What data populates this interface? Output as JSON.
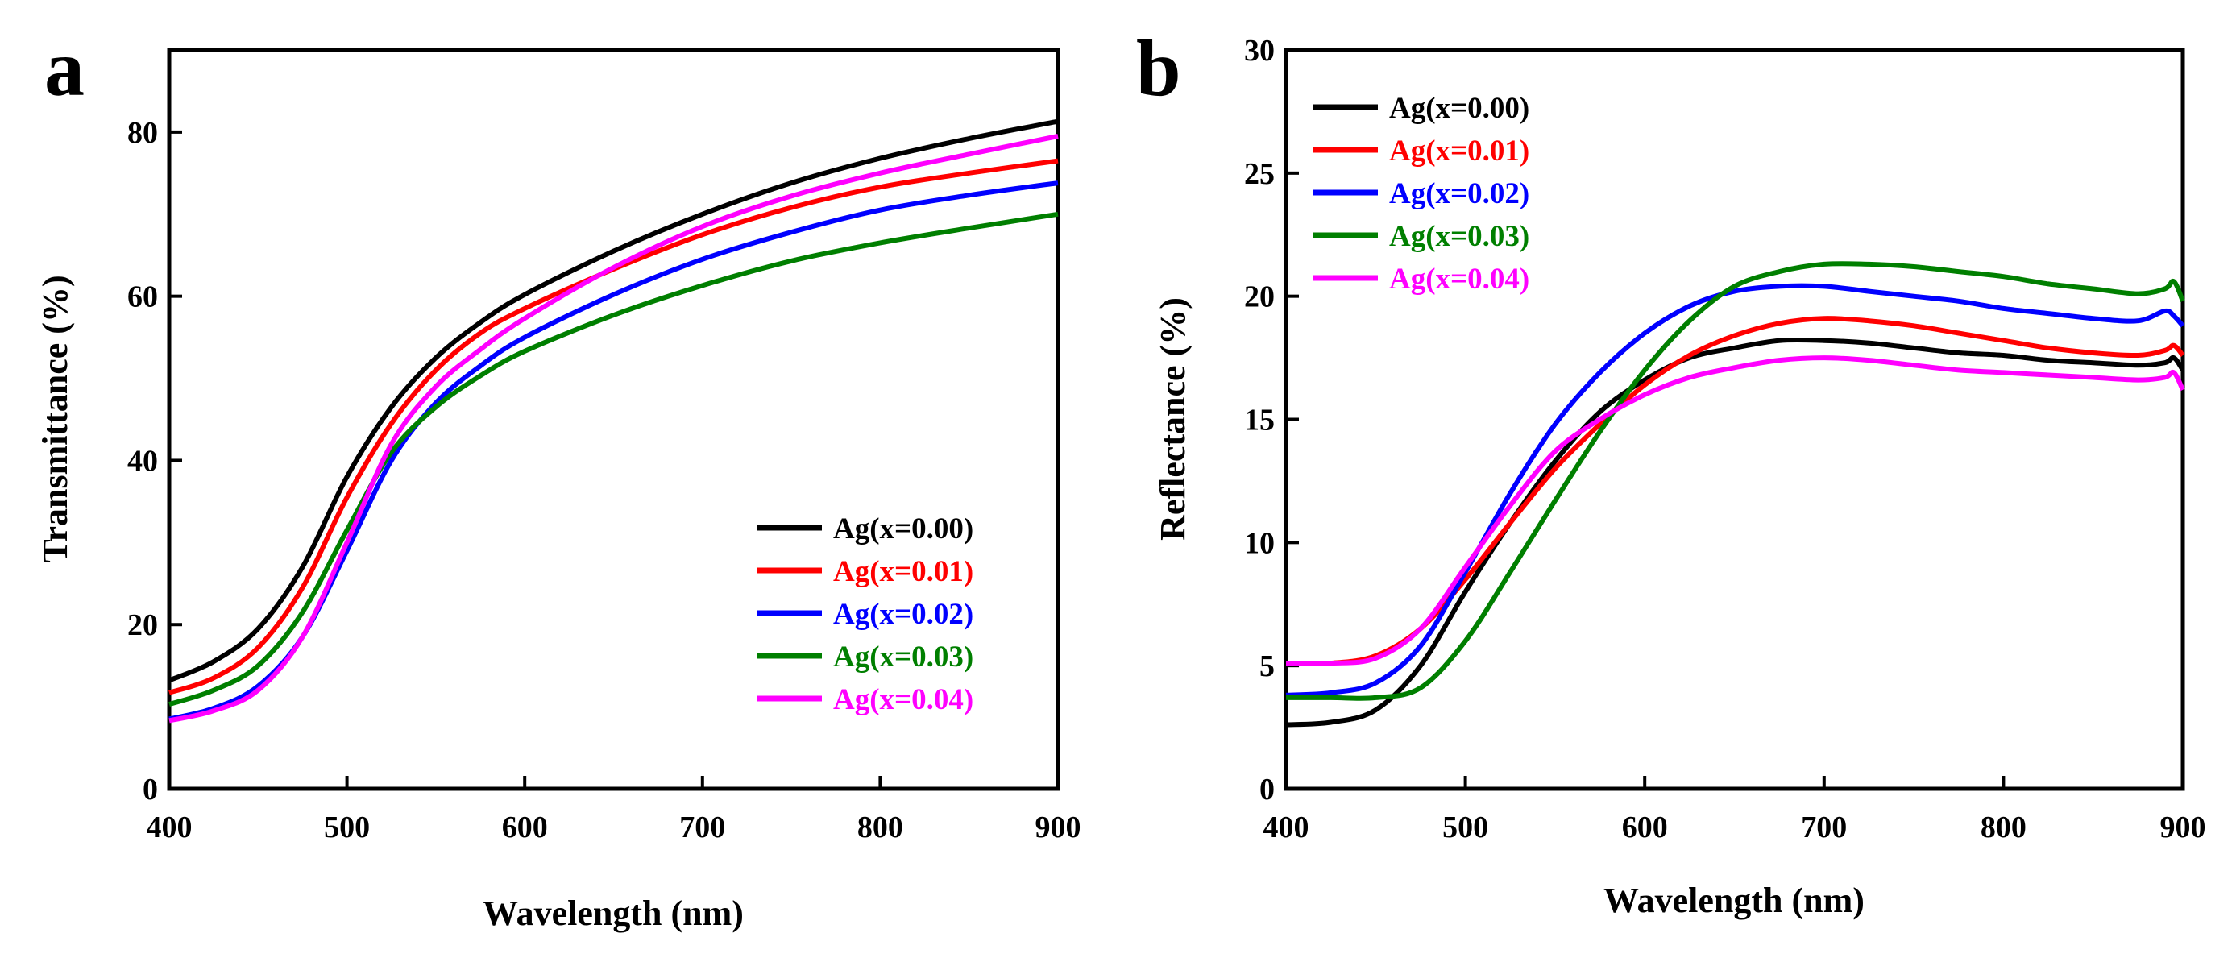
{
  "chart_data": [
    {
      "panel": "a",
      "type": "line",
      "title": "",
      "xlabel": "Wavelength (nm)",
      "ylabel": "Transmittance (%)",
      "xlim": [
        400,
        900
      ],
      "ylim": [
        0,
        90
      ],
      "xticks": [
        400,
        500,
        600,
        700,
        800,
        900
      ],
      "xtick_labels": [
        "400",
        "500",
        "600",
        "700",
        "800",
        "900"
      ],
      "yticks": [
        0,
        20,
        40,
        60,
        80
      ],
      "ytick_labels": [
        "0",
        "20",
        "40",
        "60",
        "80"
      ],
      "grid": false,
      "legend_position": "lower-right",
      "x": [
        400,
        425,
        450,
        475,
        500,
        525,
        550,
        575,
        600,
        650,
        700,
        750,
        800,
        850,
        900
      ],
      "series": [
        {
          "name": "Ag(x=0.00)",
          "color": "#000000",
          "values": [
            13.2,
            15.5,
            19.5,
            27.0,
            38.0,
            46.5,
            52.5,
            56.8,
            60.2,
            65.5,
            70.0,
            73.8,
            76.8,
            79.2,
            81.3
          ]
        },
        {
          "name": "Ag(x=0.01)",
          "color": "#ff0000",
          "values": [
            11.7,
            13.5,
            17.2,
            24.5,
            35.5,
            44.5,
            51.0,
            55.5,
            58.5,
            63.3,
            67.5,
            70.8,
            73.3,
            75.0,
            76.5
          ]
        },
        {
          "name": "Ag(x=0.02)",
          "color": "#0000ff",
          "values": [
            8.5,
            9.8,
            12.5,
            18.5,
            29.0,
            40.0,
            47.0,
            51.5,
            55.0,
            60.2,
            64.5,
            67.8,
            70.5,
            72.3,
            73.8
          ]
        },
        {
          "name": "Ag(x=0.03)",
          "color": "#007f00",
          "values": [
            10.3,
            12.0,
            15.0,
            21.5,
            31.5,
            41.0,
            46.5,
            50.3,
            53.3,
            57.7,
            61.3,
            64.3,
            66.5,
            68.3,
            70.0
          ]
        },
        {
          "name": "Ag(x=0.04)",
          "color": "#ff00ff",
          "values": [
            8.3,
            9.5,
            12.0,
            18.5,
            30.0,
            42.0,
            49.0,
            53.5,
            57.3,
            63.5,
            68.5,
            72.2,
            75.0,
            77.3,
            79.5
          ]
        }
      ]
    },
    {
      "panel": "b",
      "type": "line",
      "title": "",
      "xlabel": "Wavelength (nm)",
      "ylabel": "Reflectance (%)",
      "xlim": [
        400,
        900
      ],
      "ylim": [
        0,
        30
      ],
      "xticks": [
        400,
        500,
        600,
        700,
        800,
        900
      ],
      "xtick_labels": [
        "400",
        "500",
        "600",
        "700",
        "800",
        "900"
      ],
      "yticks": [
        0,
        5,
        10,
        15,
        20,
        25,
        30
      ],
      "ytick_labels": [
        "0",
        "5",
        "10",
        "15",
        "20",
        "25",
        "30"
      ],
      "grid": false,
      "legend_position": "top-left",
      "x": [
        400,
        425,
        450,
        475,
        500,
        525,
        550,
        575,
        600,
        625,
        650,
        675,
        700,
        725,
        750,
        775,
        800,
        825,
        850,
        875,
        890,
        895,
        900
      ],
      "series": [
        {
          "name": "Ag(x=0.00)",
          "color": "#000000",
          "values": [
            2.6,
            2.7,
            3.2,
            5.0,
            8.0,
            10.8,
            13.3,
            15.3,
            16.6,
            17.5,
            17.9,
            18.2,
            18.2,
            18.1,
            17.9,
            17.7,
            17.6,
            17.4,
            17.3,
            17.2,
            17.3,
            17.5,
            17.0
          ]
        },
        {
          "name": "Ag(x=0.01)",
          "color": "#ff0000",
          "values": [
            5.1,
            5.1,
            5.4,
            6.5,
            8.5,
            10.8,
            13.0,
            14.8,
            16.4,
            17.6,
            18.4,
            18.9,
            19.1,
            19.0,
            18.8,
            18.5,
            18.2,
            17.9,
            17.7,
            17.6,
            17.8,
            18.0,
            17.6
          ]
        },
        {
          "name": "Ag(x=0.02)",
          "color": "#0000ff",
          "values": [
            3.8,
            3.9,
            4.3,
            5.8,
            8.8,
            12.0,
            14.8,
            16.9,
            18.5,
            19.6,
            20.2,
            20.4,
            20.4,
            20.2,
            20.0,
            19.8,
            19.5,
            19.3,
            19.1,
            19.0,
            19.4,
            19.2,
            18.8
          ]
        },
        {
          "name": "Ag(x=0.03)",
          "color": "#007f00",
          "values": [
            3.7,
            3.7,
            3.7,
            4.1,
            6.0,
            8.8,
            11.7,
            14.5,
            17.0,
            19.0,
            20.4,
            21.0,
            21.3,
            21.3,
            21.2,
            21.0,
            20.8,
            20.5,
            20.3,
            20.1,
            20.3,
            20.6,
            19.8
          ]
        },
        {
          "name": "Ag(x=0.04)",
          "color": "#ff00ff",
          "values": [
            5.1,
            5.1,
            5.3,
            6.5,
            9.0,
            11.5,
            13.7,
            15.0,
            16.0,
            16.7,
            17.1,
            17.4,
            17.5,
            17.4,
            17.2,
            17.0,
            16.9,
            16.8,
            16.7,
            16.6,
            16.7,
            16.9,
            16.2
          ]
        }
      ]
    }
  ]
}
